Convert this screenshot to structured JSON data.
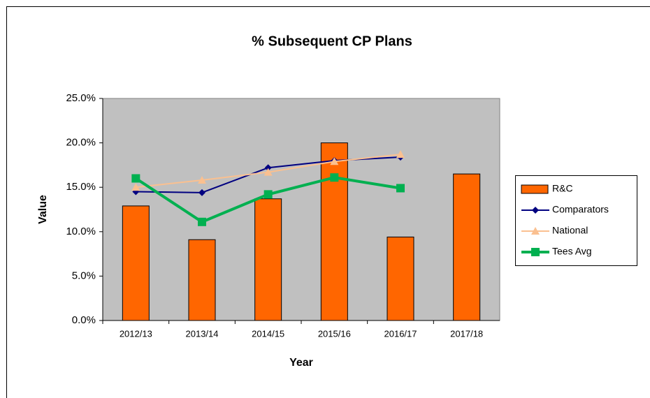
{
  "chart_data": {
    "type": "combo",
    "title": "% Subsequent CP Plans",
    "x_label": "Year",
    "y_label": "Value",
    "categories": [
      "2012/13",
      "2013/14",
      "2014/15",
      "2015/16",
      "2016/17",
      "2017/18"
    ],
    "series": [
      {
        "name": "R&C",
        "type": "bar",
        "color": "#ff6600",
        "values": [
          12.9,
          9.1,
          13.7,
          20.0,
          9.4,
          16.5
        ]
      },
      {
        "name": "Comparators",
        "type": "line",
        "marker": "diamond",
        "color": "#000080",
        "values": [
          14.5,
          14.4,
          17.2,
          18.0,
          18.4,
          null
        ]
      },
      {
        "name": "National",
        "type": "line",
        "marker": "triangle",
        "color": "#fac090",
        "values": [
          15.0,
          15.8,
          16.7,
          17.9,
          18.7,
          null
        ]
      },
      {
        "name": "Tees Avg",
        "type": "line",
        "marker": "square",
        "color": "#00b050",
        "values": [
          16.0,
          11.1,
          14.2,
          16.1,
          14.9,
          null
        ]
      }
    ],
    "ylim": [
      0,
      25
    ],
    "yticks": [
      {
        "value": 0,
        "label": "0.0%"
      },
      {
        "value": 5,
        "label": "5.0%"
      },
      {
        "value": 10,
        "label": "10.0%"
      },
      {
        "value": 15,
        "label": "15.0%"
      },
      {
        "value": 20,
        "label": "20.0%"
      },
      {
        "value": 25,
        "label": "25.0%"
      }
    ],
    "grid": false,
    "legend": "right"
  }
}
